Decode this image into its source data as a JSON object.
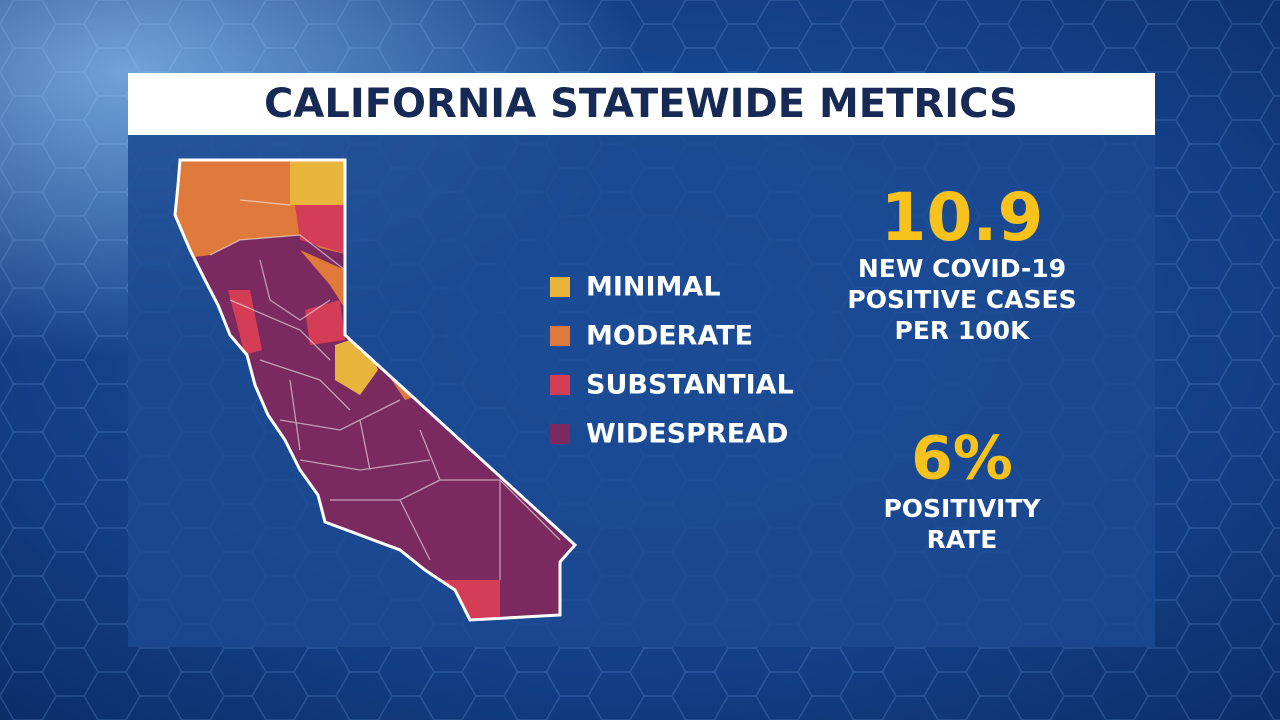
{
  "header": {
    "title": "CALIFORNIA STATEWIDE METRICS"
  },
  "legend": [
    {
      "label": "MINIMAL",
      "color": "#e8b43c"
    },
    {
      "label": "MODERATE",
      "color": "#e07a3c"
    },
    {
      "label": "SUBSTANTIAL",
      "color": "#d53c55"
    },
    {
      "label": "WIDESPREAD",
      "color": "#7a2a5e"
    }
  ],
  "metrics": [
    {
      "value": "10.9",
      "lines": [
        "NEW COVID-19",
        "POSITIVE CASES",
        "PER 100K"
      ]
    },
    {
      "value": "6%",
      "lines": [
        "POSITIVITY",
        "RATE"
      ]
    }
  ]
}
